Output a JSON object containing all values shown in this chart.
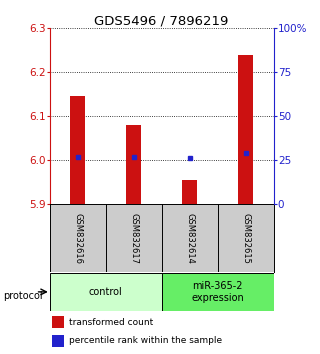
{
  "title": "GDS5496 / 7896219",
  "samples": [
    "GSM832616",
    "GSM832617",
    "GSM832614",
    "GSM832615"
  ],
  "transformed_counts": [
    6.145,
    6.08,
    5.955,
    6.24
  ],
  "percentile_ranks": [
    27,
    27,
    26,
    29
  ],
  "y_min": 5.9,
  "y_max": 6.3,
  "y_ticks": [
    5.9,
    6.0,
    6.1,
    6.2,
    6.3
  ],
  "right_y_ticks": [
    0,
    25,
    50,
    75,
    100
  ],
  "right_y_labels": [
    "0",
    "25",
    "50",
    "75",
    "100%"
  ],
  "bar_color": "#cc1111",
  "dot_color": "#2222cc",
  "bar_bottom": 5.9,
  "groups": [
    {
      "label": "control",
      "spans": [
        0,
        2
      ],
      "color": "#ccffcc"
    },
    {
      "label": "miR-365-2\nexpression",
      "spans": [
        2,
        4
      ],
      "color": "#66ee66"
    }
  ],
  "protocol_label": "protocol",
  "legend_bar_label": "transformed count",
  "legend_dot_label": "percentile rank within the sample",
  "background_color": "#ffffff",
  "sample_box_color": "#cccccc"
}
